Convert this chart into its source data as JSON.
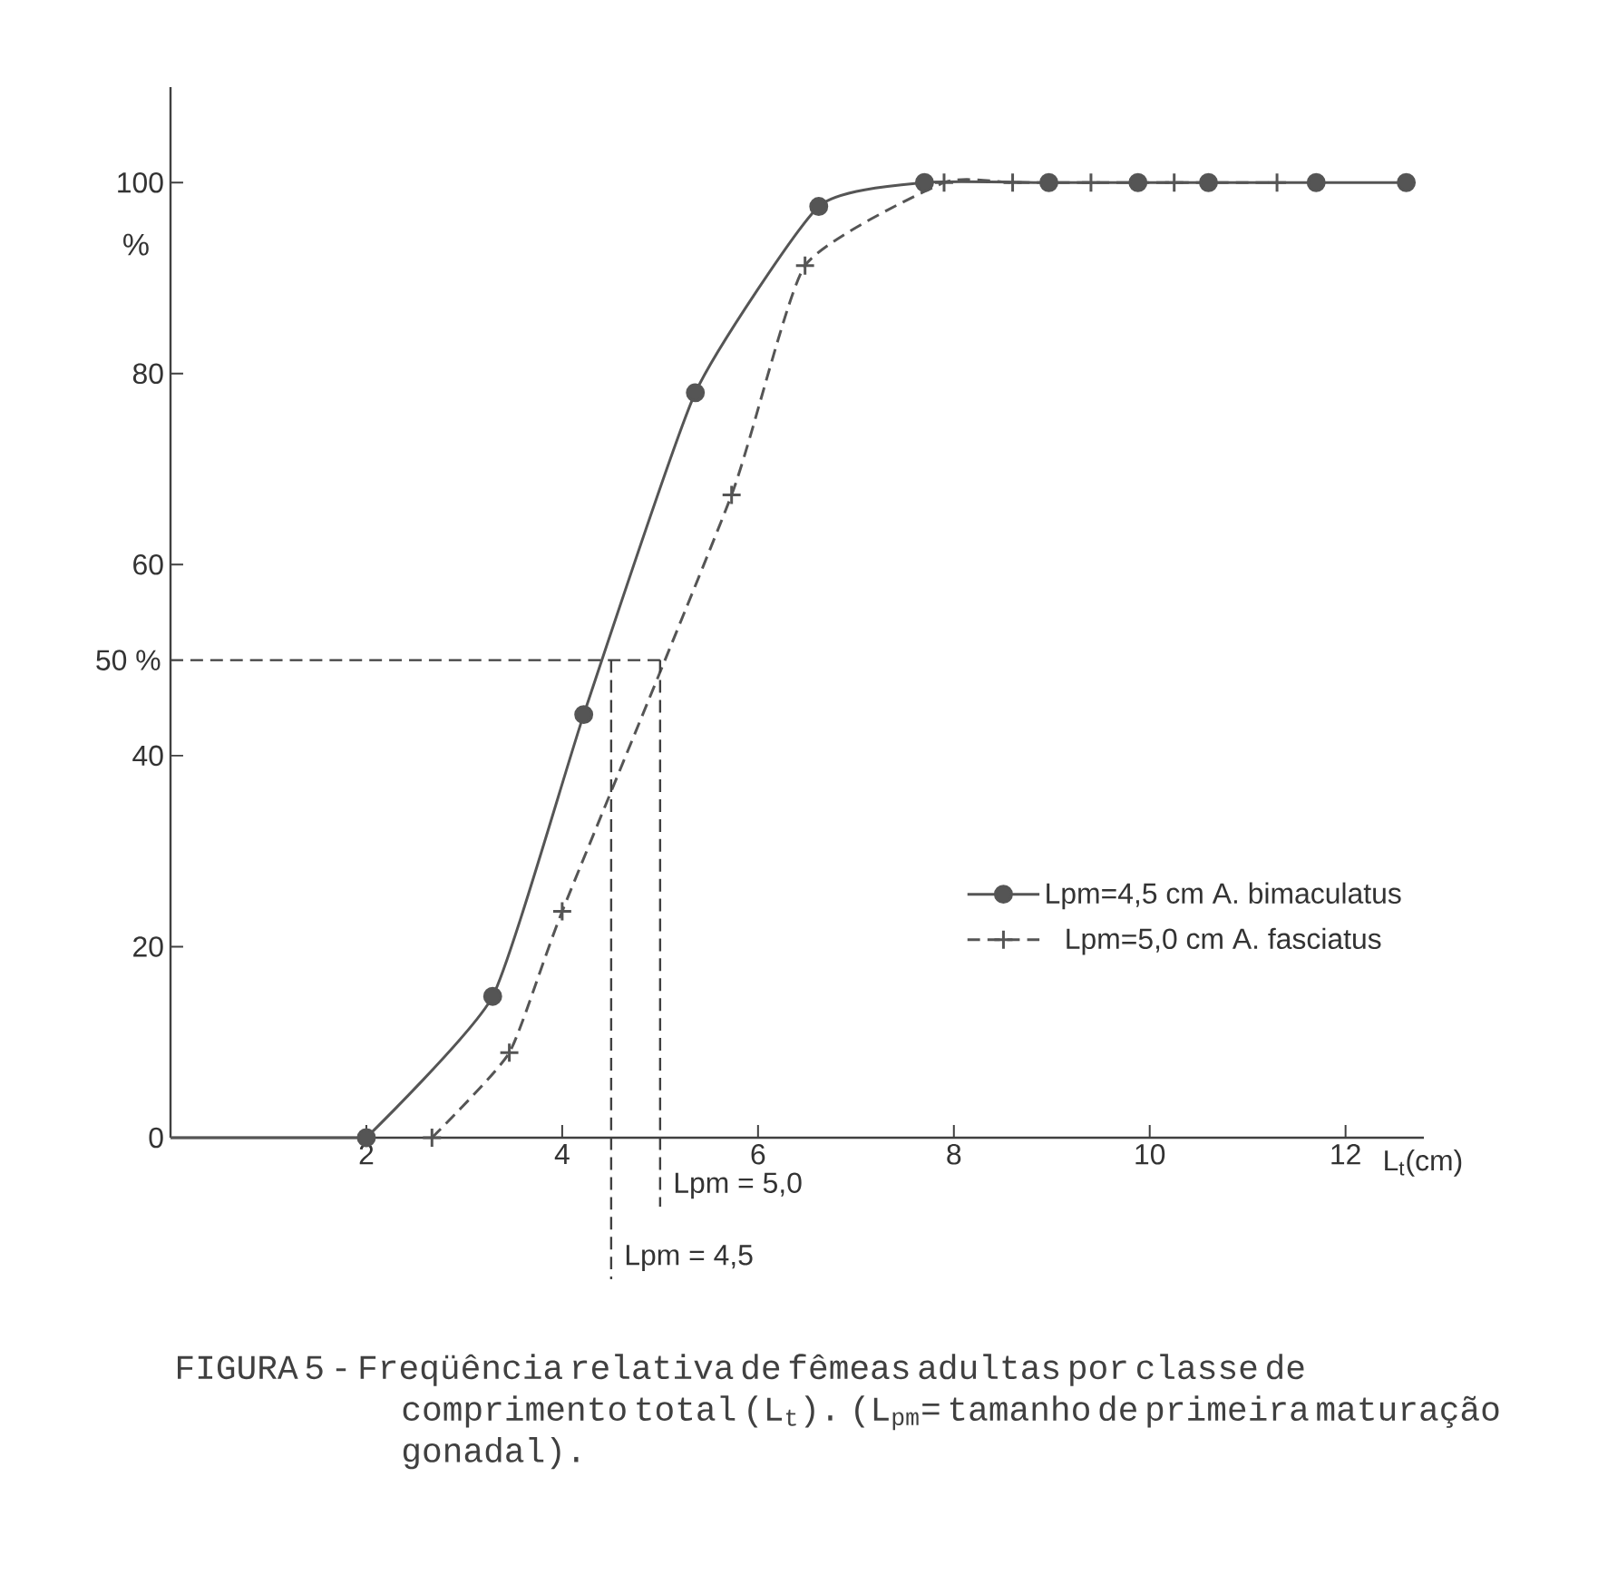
{
  "chart_data": {
    "type": "line",
    "xlabel": "L$_{t}$(cm)",
    "ylabel": "%",
    "xlim": [
      0,
      12.8
    ],
    "ylim": [
      0,
      110
    ],
    "xticks": [
      2,
      4,
      6,
      8,
      10,
      12
    ],
    "yticks": [
      0,
      20,
      40,
      60,
      80,
      100
    ],
    "grid": false,
    "legend": "bottom right",
    "series": [
      {
        "name": "Lpm=4,5 cm  A. bimaculatus",
        "color": "#555555",
        "marker": "circle",
        "line_style": "solid",
        "x": [
          2,
          3.29,
          4.22,
          5.36,
          6.62,
          7.7,
          8.97,
          9.88,
          10.6,
          11.7,
          12.62
        ],
        "values": [
          0,
          14.8,
          44.3,
          78,
          97.5,
          100,
          100,
          100,
          100,
          100,
          100
        ]
      },
      {
        "name": "Lpm=5,0 cm  A. fasciatus",
        "color": "#555555",
        "marker": "cross",
        "line_style": "dashed",
        "x": [
          2.67,
          3.46,
          4.0,
          5.73,
          6.48,
          7.9,
          8.6,
          9.4,
          10.25,
          11.3
        ],
        "values": [
          0,
          8.9,
          23.7,
          67.3,
          91.3,
          100,
          100,
          100,
          100,
          100
        ]
      },
      {
        "color": "#555555",
        "marker": "none",
        "line_style": "solid",
        "x": [
          0,
          2
        ],
        "values": [
          0,
          0
        ]
      }
    ],
    "ref_lines": [
      {
        "axis": "y",
        "value": 50,
        "label": "50 %",
        "line_style": "dashed"
      },
      {
        "axis": "x",
        "value": 4.5,
        "label": "Lpm = 4,5",
        "line_style": "dashed"
      },
      {
        "axis": "x",
        "value": 5.0,
        "label": "Lpm = 5,0",
        "line_style": "dashed"
      }
    ],
    "annotations": [
      "FIGURA 5 - Freqüência relativa de fêmeas adultas por classe de comprimento total (L$_{t}$). (L$_{pm}$= tamanho de primeira maturação gonadal)."
    ]
  }
}
